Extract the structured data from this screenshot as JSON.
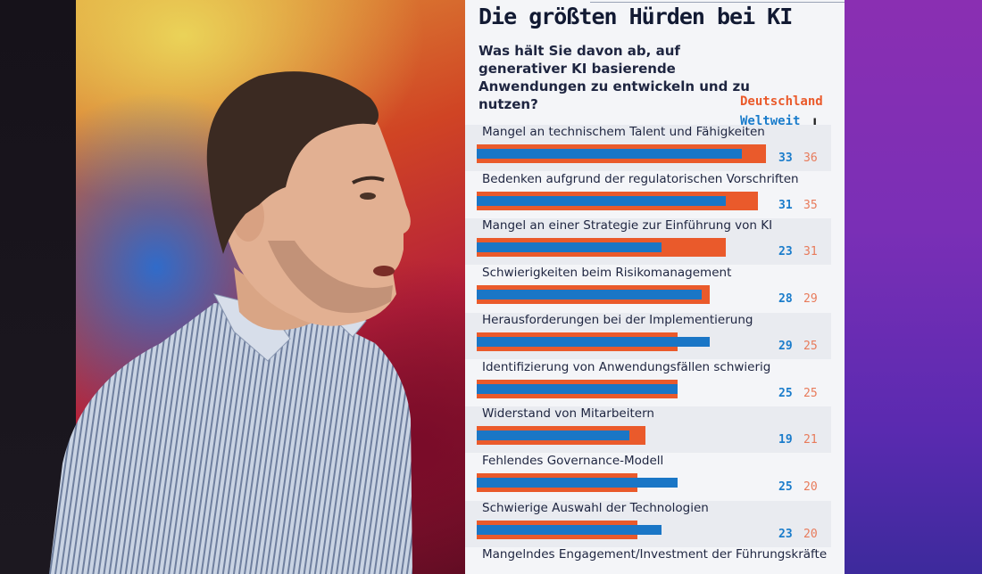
{
  "slide": {
    "title": "Die größten Hürden bei KI",
    "question": "Was hält Sie davon ab, auf generativer KI basierende Anwendungen zu entwickeln und zu nutzen?",
    "legend_germany": "Deutschland",
    "legend_worldwide": "Weltweit",
    "colors": {
      "germany": "#ea5a2b",
      "worldwide": "#1a76c6"
    }
  },
  "chart_data": {
    "type": "bar",
    "categories": [
      "Mangel an technischem Talent und Fähigkeiten",
      "Bedenken aufgrund der regulatorischen Vorschriften",
      "Mangel an einer Strategie zur Einführung von KI",
      "Schwierigkeiten beim Risikomanagement",
      "Herausforderungen bei der Implementierung",
      "Identifizierung von Anwendungsfällen schwierig",
      "Widerstand von Mitarbeitern",
      "Fehlendes Governance-Modell",
      "Schwierige Auswahl der Technologien",
      "Mangelndes Engagement/Investment der Führungskräfte"
    ],
    "series": [
      {
        "name": "Weltweit",
        "values": [
          33,
          31,
          23,
          28,
          29,
          25,
          19,
          25,
          23,
          null
        ]
      },
      {
        "name": "Deutschland",
        "values": [
          36,
          35,
          31,
          29,
          25,
          25,
          21,
          20,
          20,
          null
        ]
      }
    ]
  }
}
